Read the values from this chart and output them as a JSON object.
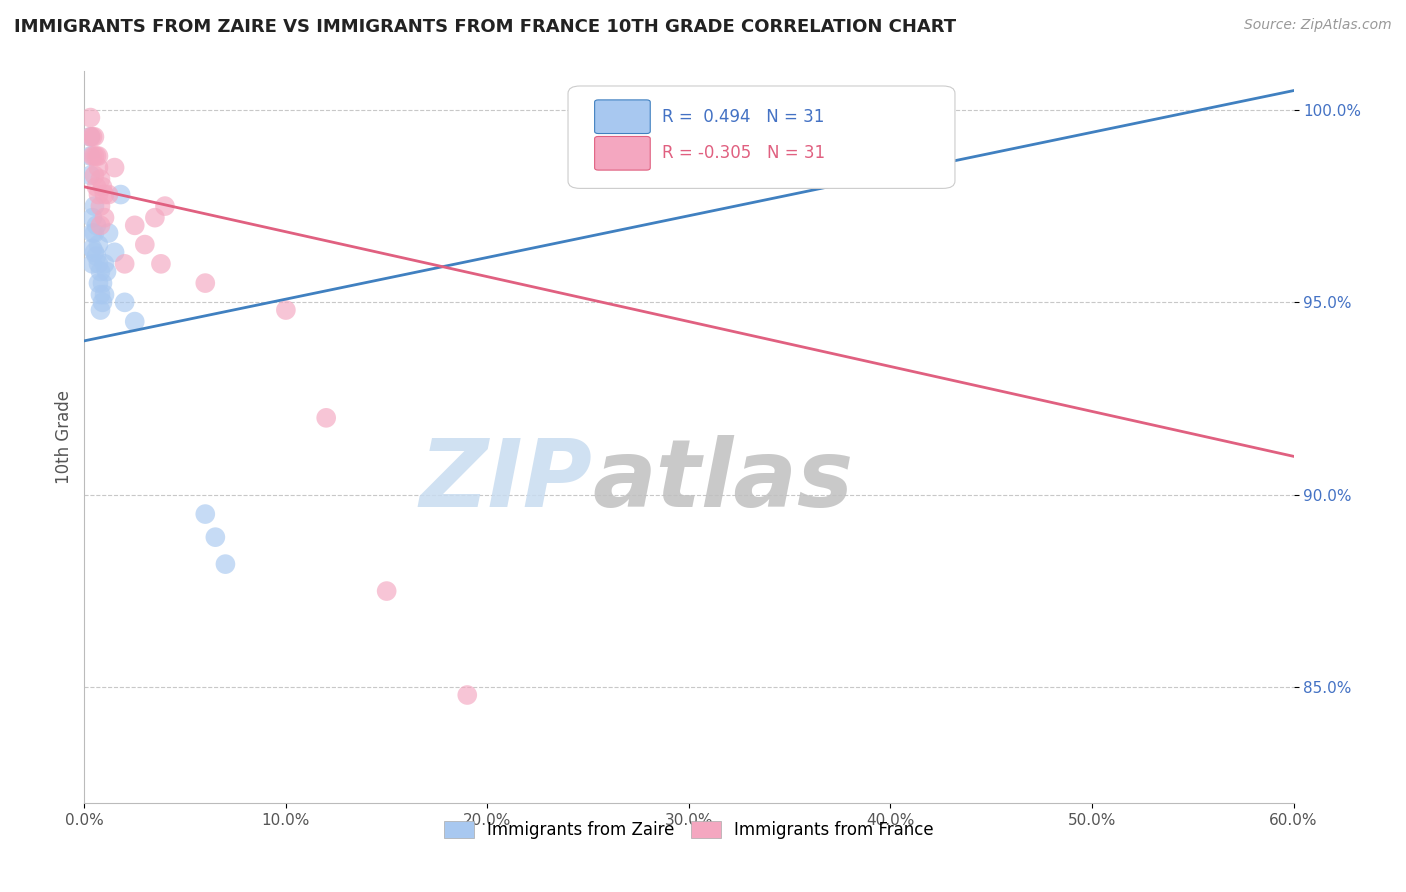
{
  "title": "IMMIGRANTS FROM ZAIRE VS IMMIGRANTS FROM FRANCE 10TH GRADE CORRELATION CHART",
  "source_text": "Source: ZipAtlas.com",
  "ylabel": "10th Grade",
  "x_label_bottom": "Immigrants from Zaire",
  "legend_label_france": "Immigrants from France",
  "xlim": [
    0.0,
    0.6
  ],
  "ylim": [
    0.82,
    1.01
  ],
  "xtick_labels": [
    "0.0%",
    "10.0%",
    "20.0%",
    "30.0%",
    "40.0%",
    "50.0%",
    "60.0%"
  ],
  "xtick_values": [
    0.0,
    0.1,
    0.2,
    0.3,
    0.4,
    0.5,
    0.6
  ],
  "ytick_labels_right": [
    "100.0%",
    "95.0%",
    "90.0%",
    "85.0%"
  ],
  "ytick_values_right": [
    1.0,
    0.95,
    0.9,
    0.85
  ],
  "r_zaire": 0.494,
  "n_zaire": 31,
  "r_france": -0.305,
  "n_france": 31,
  "color_zaire": "#A8C8F0",
  "color_france": "#F4A7C0",
  "color_zaire_line": "#4080C0",
  "color_france_line": "#E06080",
  "blue_line_x": [
    0.0,
    0.6
  ],
  "blue_line_y": [
    0.94,
    1.005
  ],
  "pink_line_x": [
    0.0,
    0.6
  ],
  "pink_line_y": [
    0.98,
    0.91
  ],
  "scatter_zaire_x": [
    0.003,
    0.003,
    0.003,
    0.004,
    0.004,
    0.004,
    0.004,
    0.005,
    0.005,
    0.005,
    0.006,
    0.006,
    0.007,
    0.007,
    0.007,
    0.008,
    0.008,
    0.008,
    0.009,
    0.009,
    0.01,
    0.01,
    0.011,
    0.012,
    0.015,
    0.018,
    0.02,
    0.025,
    0.06,
    0.065,
    0.07
  ],
  "scatter_zaire_y": [
    0.993,
    0.988,
    0.983,
    0.972,
    0.968,
    0.964,
    0.96,
    0.975,
    0.968,
    0.963,
    0.97,
    0.962,
    0.965,
    0.96,
    0.955,
    0.958,
    0.952,
    0.948,
    0.955,
    0.95,
    0.96,
    0.952,
    0.958,
    0.968,
    0.963,
    0.978,
    0.95,
    0.945,
    0.895,
    0.889,
    0.882
  ],
  "scatter_france_x": [
    0.003,
    0.003,
    0.004,
    0.004,
    0.005,
    0.005,
    0.005,
    0.006,
    0.006,
    0.007,
    0.007,
    0.007,
    0.008,
    0.008,
    0.008,
    0.009,
    0.01,
    0.01,
    0.012,
    0.015,
    0.02,
    0.025,
    0.03,
    0.035,
    0.038,
    0.04,
    0.06,
    0.1,
    0.12,
    0.15,
    0.19
  ],
  "scatter_france_y": [
    0.998,
    0.993,
    0.993,
    0.988,
    0.993,
    0.988,
    0.983,
    0.988,
    0.98,
    0.988,
    0.985,
    0.978,
    0.982,
    0.975,
    0.97,
    0.98,
    0.978,
    0.972,
    0.978,
    0.985,
    0.96,
    0.97,
    0.965,
    0.972,
    0.96,
    0.975,
    0.955,
    0.948,
    0.92,
    0.875,
    0.848
  ],
  "background_color": "#FFFFFF",
  "watermark_text1": "ZIP",
  "watermark_text2": "atlas",
  "grid_color": "#C8C8C8"
}
